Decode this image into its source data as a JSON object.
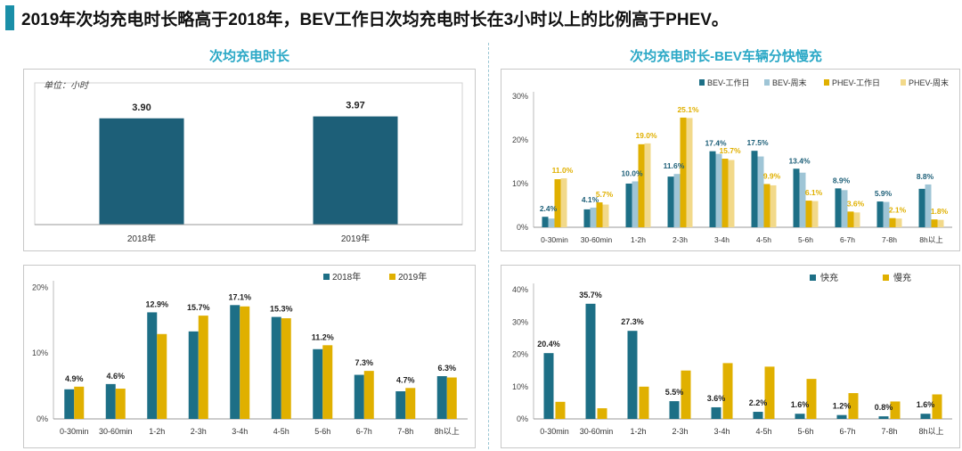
{
  "header": {
    "title": "2019年次均充电时长略高于2018年，BEV工作日次均充电时长在3小时以上的比例高于PHEV。"
  },
  "left_section": {
    "title": "次均充电时长"
  },
  "right_section": {
    "title": "次均充电时长-BEV车辆分快慢充"
  },
  "colors": {
    "dark_teal": "#1d6f86",
    "light_blue": "#9fc5d6",
    "gold": "#e0b000",
    "pale_gold": "#f2d98a",
    "label_teal": "#1d5f78",
    "accent": "#2aa8c6"
  },
  "chart_data": [
    {
      "id": "annual-avg",
      "type": "bar",
      "unit_note": "单位：小时",
      "categories": [
        "2018年",
        "2019年"
      ],
      "values": [
        3.9,
        3.97
      ],
      "data_labels": [
        "3.90",
        "3.97"
      ],
      "ylim": [
        0,
        5.2
      ]
    },
    {
      "id": "duration-dist",
      "type": "bar",
      "categories": [
        "0-30min",
        "30-60min",
        "1-2h",
        "2-3h",
        "3-4h",
        "4-5h",
        "5-6h",
        "6-7h",
        "7-8h",
        "8h以上"
      ],
      "series": [
        {
          "name": "2018年",
          "color": "#1d6f86",
          "values": [
            4.5,
            5.3,
            16.2,
            13.3,
            17.3,
            15.5,
            10.6,
            6.7,
            4.2,
            6.5
          ]
        },
        {
          "name": "2019年",
          "color": "#e0b000",
          "values": [
            4.9,
            4.6,
            12.9,
            15.7,
            17.1,
            15.3,
            11.2,
            7.3,
            4.7,
            6.3
          ]
        }
      ],
      "data_labels": [
        "4.9%",
        "4.6%",
        "12.9%",
        "15.7%",
        "17.1%",
        "15.3%",
        "11.2%",
        "7.3%",
        "4.7%",
        "6.3%"
      ],
      "yticks": [
        "0%",
        "10%",
        "20%"
      ],
      "ylim": [
        0,
        21
      ]
    },
    {
      "id": "bev-phev-weekday",
      "type": "bar",
      "categories": [
        "0-30min",
        "30-60min",
        "1-2h",
        "2-3h",
        "3-4h",
        "4-5h",
        "5-6h",
        "6-7h",
        "7-8h",
        "8h以上"
      ],
      "series": [
        {
          "name": "BEV-工作日",
          "color": "#1d6f86",
          "values": [
            2.4,
            4.1,
            10.0,
            11.6,
            17.4,
            17.5,
            13.4,
            8.9,
            5.9,
            8.8
          ]
        },
        {
          "name": "BEV-周末",
          "color": "#9fc5d6",
          "values": [
            2.0,
            4.5,
            10.5,
            12.2,
            16.8,
            16.2,
            12.5,
            8.5,
            5.8,
            9.8
          ]
        },
        {
          "name": "PHEV-工作日",
          "color": "#e0b000",
          "values": [
            11.0,
            5.7,
            19.0,
            25.1,
            15.7,
            9.9,
            6.1,
            3.6,
            2.1,
            1.8
          ]
        },
        {
          "name": "PHEV-周末",
          "color": "#f2d98a",
          "values": [
            11.2,
            5.2,
            19.2,
            25.0,
            15.4,
            9.6,
            6.0,
            3.4,
            2.0,
            1.7
          ]
        }
      ],
      "data_labels_bev": [
        "2.4%",
        "4.1%",
        "10.0%",
        "11.6%",
        "17.4%",
        "17.5%",
        "13.4%",
        "8.9%",
        "5.9%",
        "8.8%"
      ],
      "data_labels_phev": [
        "11.0%",
        "5.7%",
        "19.0%",
        "25.1%",
        "15.7%",
        "9.9%",
        "6.1%",
        "3.6%",
        "2.1%",
        "1.8%"
      ],
      "yticks": [
        "0%",
        "10%",
        "20%",
        "30%"
      ],
      "ylim": [
        0,
        31
      ]
    },
    {
      "id": "bev-fast-slow",
      "type": "bar",
      "categories": [
        "0-30min",
        "30-60min",
        "1-2h",
        "2-3h",
        "3-4h",
        "4-5h",
        "5-6h",
        "6-7h",
        "7-8h",
        "8h以上"
      ],
      "series": [
        {
          "name": "快充",
          "color": "#1d6f86",
          "values": [
            20.4,
            35.7,
            27.3,
            5.5,
            3.6,
            2.2,
            1.6,
            1.2,
            0.8,
            1.6
          ]
        },
        {
          "name": "慢充",
          "color": "#e0b000",
          "values": [
            5.3,
            3.3,
            10.0,
            15.0,
            17.3,
            16.2,
            12.4,
            8.0,
            5.4,
            7.6
          ]
        }
      ],
      "data_labels": [
        "20.4%",
        "35.7%",
        "27.3%",
        "5.5%",
        "3.6%",
        "2.2%",
        "1.6%",
        "1.2%",
        "0.8%",
        "1.6%"
      ],
      "yticks": [
        "0%",
        "10%",
        "20%",
        "30%",
        "40%"
      ],
      "ylim": [
        0,
        42
      ]
    }
  ]
}
